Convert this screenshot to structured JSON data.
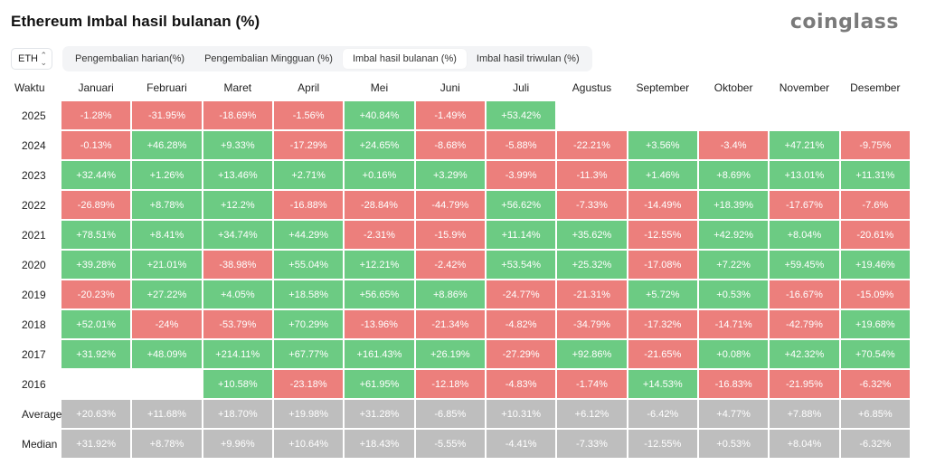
{
  "header": {
    "title": "Ethereum Imbal hasil bulanan (%)",
    "brand": "coinglass"
  },
  "asset_select": {
    "value": "ETH"
  },
  "tabs": [
    {
      "label": "Pengembalian harian(%)",
      "active": false
    },
    {
      "label": "Pengembalian Mingguan (%)",
      "active": false
    },
    {
      "label": "Imbal hasil bulanan (%)",
      "active": true
    },
    {
      "label": "Imbal hasil triwulan (%)",
      "active": false
    }
  ],
  "table": {
    "row_header": "Waktu",
    "columns": [
      "Januari",
      "Februari",
      "Maret",
      "April",
      "Mei",
      "Juni",
      "Juli",
      "Agustus",
      "September",
      "Oktober",
      "November",
      "Desember"
    ],
    "rows": [
      {
        "label": "2025",
        "values": [
          "-1.28%",
          "-31.95%",
          "-18.69%",
          "-1.56%",
          "+40.84%",
          "-1.49%",
          "+53.42%",
          "",
          "",
          "",
          "",
          ""
        ]
      },
      {
        "label": "2024",
        "values": [
          "-0.13%",
          "+46.28%",
          "+9.33%",
          "-17.29%",
          "+24.65%",
          "-8.68%",
          "-5.88%",
          "-22.21%",
          "+3.56%",
          "-3.4%",
          "+47.21%",
          "-9.75%"
        ]
      },
      {
        "label": "2023",
        "values": [
          "+32.44%",
          "+1.26%",
          "+13.46%",
          "+2.71%",
          "+0.16%",
          "+3.29%",
          "-3.99%",
          "-11.3%",
          "+1.46%",
          "+8.69%",
          "+13.01%",
          "+11.31%"
        ]
      },
      {
        "label": "2022",
        "values": [
          "-26.89%",
          "+8.78%",
          "+12.2%",
          "-16.88%",
          "-28.84%",
          "-44.79%",
          "+56.62%",
          "-7.33%",
          "-14.49%",
          "+18.39%",
          "-17.67%",
          "-7.6%"
        ]
      },
      {
        "label": "2021",
        "values": [
          "+78.51%",
          "+8.41%",
          "+34.74%",
          "+44.29%",
          "-2.31%",
          "-15.9%",
          "+11.14%",
          "+35.62%",
          "-12.55%",
          "+42.92%",
          "+8.04%",
          "-20.61%"
        ]
      },
      {
        "label": "2020",
        "values": [
          "+39.28%",
          "+21.01%",
          "-38.98%",
          "+55.04%",
          "+12.21%",
          "-2.42%",
          "+53.54%",
          "+25.32%",
          "-17.08%",
          "+7.22%",
          "+59.45%",
          "+19.46%"
        ]
      },
      {
        "label": "2019",
        "values": [
          "-20.23%",
          "+27.22%",
          "+4.05%",
          "+18.58%",
          "+56.65%",
          "+8.86%",
          "-24.77%",
          "-21.31%",
          "+5.72%",
          "+0.53%",
          "-16.67%",
          "-15.09%"
        ]
      },
      {
        "label": "2018",
        "values": [
          "+52.01%",
          "-24%",
          "-53.79%",
          "+70.29%",
          "-13.96%",
          "-21.34%",
          "-4.82%",
          "-34.79%",
          "-17.32%",
          "-14.71%",
          "-42.79%",
          "+19.68%"
        ]
      },
      {
        "label": "2017",
        "values": [
          "+31.92%",
          "+48.09%",
          "+214.11%",
          "+67.77%",
          "+161.43%",
          "+26.19%",
          "-27.29%",
          "+92.86%",
          "-21.65%",
          "+0.08%",
          "+42.32%",
          "+70.54%"
        ]
      },
      {
        "label": "2016",
        "values": [
          "",
          "",
          "+10.58%",
          "-23.18%",
          "+61.95%",
          "-12.18%",
          "-4.83%",
          "-1.74%",
          "+14.53%",
          "-16.83%",
          "-21.95%",
          "-6.32%"
        ]
      }
    ],
    "stats": [
      {
        "label": "Average",
        "values": [
          "+20.63%",
          "+11.68%",
          "+18.70%",
          "+19.98%",
          "+31.28%",
          "-6.85%",
          "+10.31%",
          "+6.12%",
          "-6.42%",
          "+4.77%",
          "+7.88%",
          "+6.85%"
        ]
      },
      {
        "label": "Median",
        "values": [
          "+31.92%",
          "+8.78%",
          "+9.96%",
          "+10.64%",
          "+18.43%",
          "-5.55%",
          "-4.41%",
          "-7.33%",
          "-12.55%",
          "+0.53%",
          "+8.04%",
          "-6.32%"
        ]
      }
    ]
  }
}
